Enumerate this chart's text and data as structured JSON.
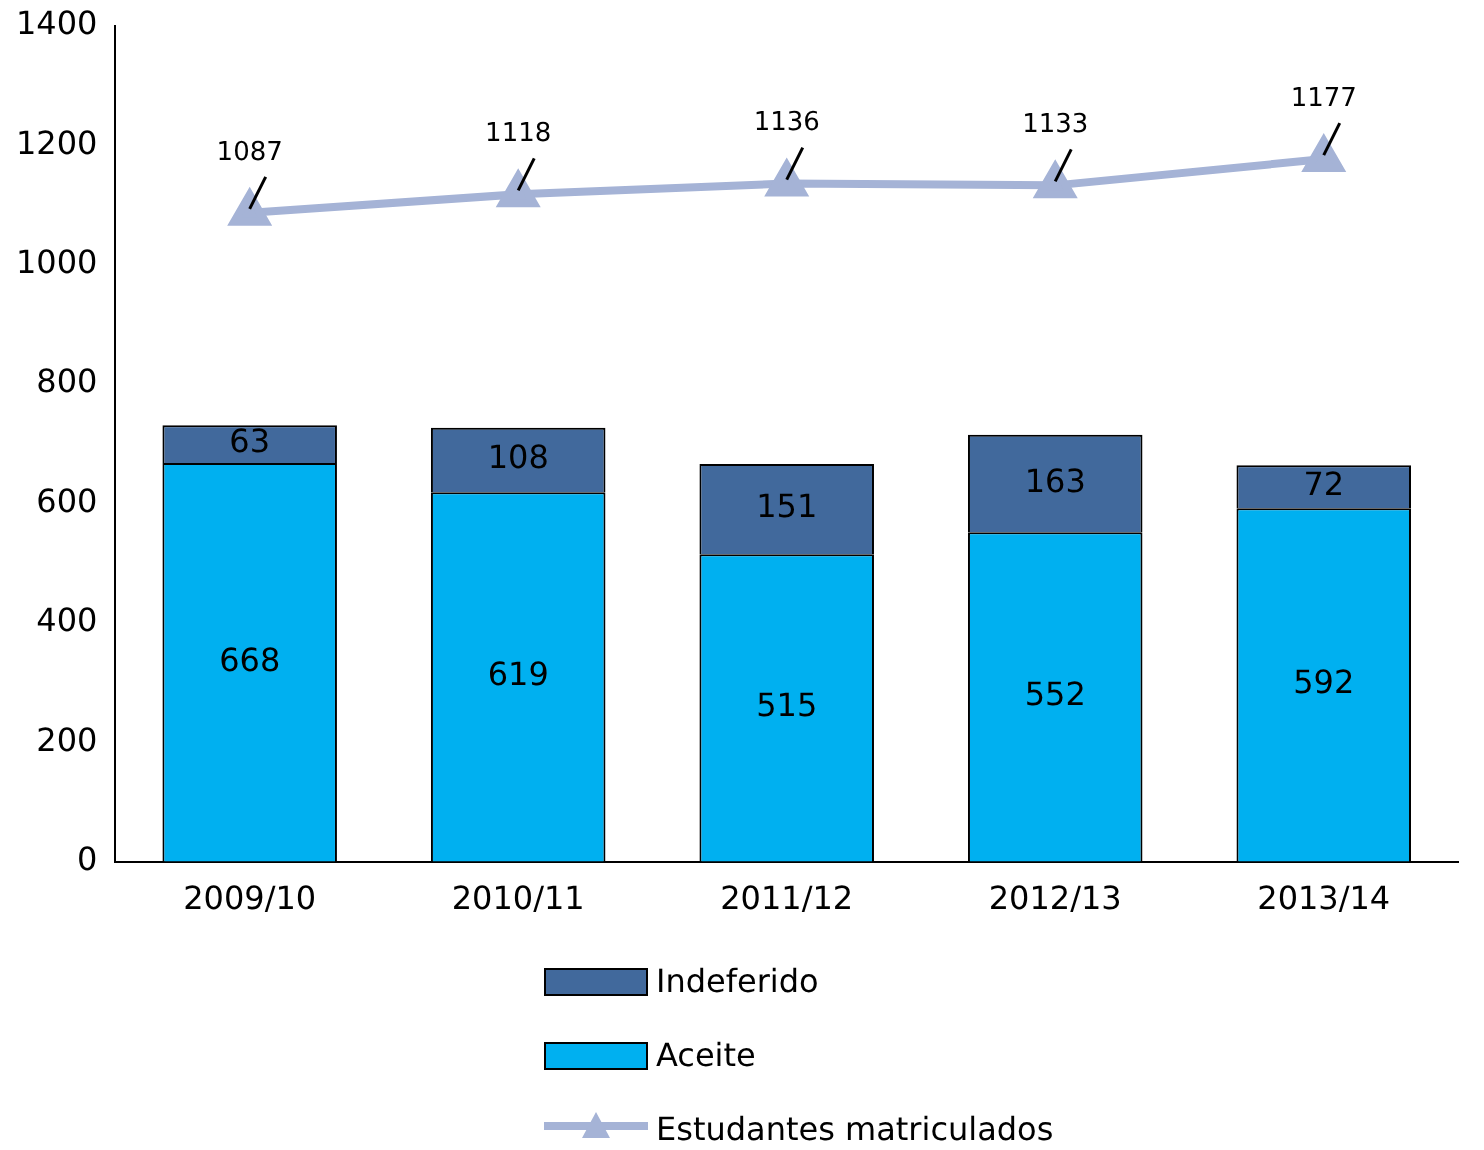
{
  "chart_data": {
    "type": "bar",
    "stacked": true,
    "categories": [
      "2009/10",
      "2010/11",
      "2011/12",
      "2012/13",
      "2013/14"
    ],
    "series": [
      {
        "name": "Aceite",
        "color": "#00b0f0",
        "values": [
          668,
          619,
          515,
          552,
          592
        ]
      },
      {
        "name": "Indeferido",
        "color": "#41699c",
        "values": [
          63,
          108,
          151,
          163,
          72
        ]
      },
      {
        "name": "Estudantes matriculados",
        "type": "line",
        "color": "#a5b3d6",
        "marker": "triangle",
        "values": [
          1087,
          1118,
          1136,
          1133,
          1177
        ]
      }
    ],
    "ylim": [
      0,
      1400
    ],
    "yticks": [
      0,
      200,
      400,
      600,
      800,
      1000,
      1200,
      1400
    ],
    "data_labels": true,
    "grid": false,
    "legend": "bottom"
  }
}
